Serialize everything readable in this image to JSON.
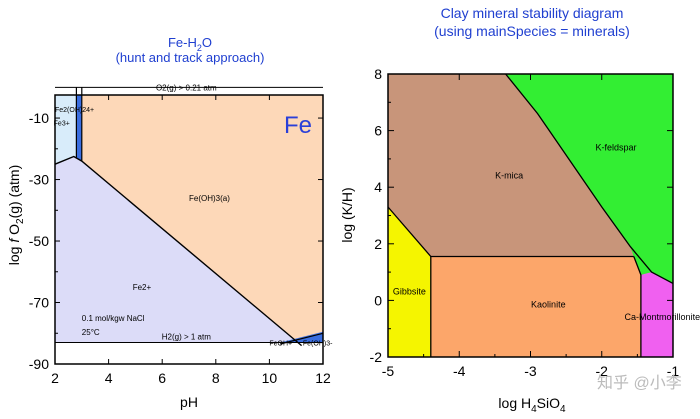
{
  "colors": {
    "title_blue": "#1f3fd0",
    "fe_label_blue": "#2a3fd8",
    "fe2_region": "#dcdcf8",
    "feoh3_region": "#fdd8b8",
    "high_region": "#d8ecfa",
    "dark_blue": "#3a6ee0",
    "kmica": "#c8957a",
    "kfeldspar": "#33ee33",
    "gibbsite": "#f5f500",
    "kaolinite": "#fca66a",
    "camont": "#f060f0",
    "watermark": "#bbbbbb"
  },
  "watermark": "知乎 @小李",
  "chart_data": [
    {
      "type": "area",
      "title_line1": "Fe-H",
      "title_sub": "2",
      "title_line1_end": "O",
      "title_line2": "(hunt and track approach)",
      "element_label": "Fe",
      "xlabel": "pH",
      "ylabel_parts": {
        "a": "log ",
        "b": "f",
        "c": " O",
        "d": "2",
        "e": "(g) (atm)"
      },
      "xlim": [
        2,
        12
      ],
      "ylim": [
        -90,
        -2.5
      ],
      "x_ticks": [
        2,
        4,
        6,
        8,
        10,
        12
      ],
      "x_tick_labels": [
        "2",
        "4",
        "6",
        "8",
        "10",
        "12"
      ],
      "y_ticks": [
        -10,
        -30,
        -50,
        -70,
        -90
      ],
      "y_tick_labels": [
        "-10",
        "-30",
        "-50",
        "-70",
        "-90"
      ],
      "limit_labels": {
        "upper": "O2(g) > 0.21 atm",
        "lower": "H2(g) > 1 atm"
      },
      "conditions": {
        "line1": "0.1 mol/kgw NaCl",
        "line2": "25°C"
      },
      "region_labels": {
        "fe2": {
          "text": "Fe2+",
          "x": 4.9,
          "y": -66
        },
        "feoh3a": {
          "text": "Fe(OH)3(a)",
          "x": 7.0,
          "y": -37
        },
        "feoh2": {
          "text": "Fe2(OH)24+",
          "x": 2.0,
          "y": -8
        },
        "fe3": {
          "text": "Fe3+",
          "x": 1.95,
          "y": -12.5
        },
        "feoh_plus": {
          "text": "FeOH+",
          "x": 10.0,
          "y": -84
        },
        "feoh3_minus": {
          "text": "Fe(OH)3-",
          "x": 11.25,
          "y": -84
        }
      },
      "upper_limit_o2": 0,
      "lower_limit_h2": -83,
      "fe2_feoh3_boundary": [
        [
          2,
          -25
        ],
        [
          2.7,
          -22.5
        ],
        [
          3.0,
          -24
        ],
        [
          11.2,
          -84
        ]
      ],
      "fe3_upper_pH": [
        2.8,
        3.0
      ],
      "feoh_minus_line": [
        [
          10.4,
          -83.5
        ],
        [
          12,
          -80
        ]
      ],
      "bottom_white_y": -83
    },
    {
      "type": "area",
      "title_line1": "Clay mineral stability diagram",
      "title_line2": "(using mainSpecies = minerals)",
      "xlabel_parts": {
        "a": "log H",
        "b": "4",
        "c": "SiO",
        "d": "4"
      },
      "ylabel": "log (K/H)",
      "xlim": [
        -5,
        -1
      ],
      "ylim": [
        -2,
        8
      ],
      "x_ticks": [
        -5,
        -4,
        -3,
        -2,
        -1
      ],
      "x_tick_labels": [
        "-5",
        "-4",
        "-3",
        "-2",
        "-1"
      ],
      "y_ticks": [
        -2,
        0,
        2,
        4,
        6,
        8
      ],
      "y_tick_labels": [
        "-2",
        "0",
        "2",
        "4",
        "6",
        "8"
      ],
      "regions": [
        {
          "name": "K-mica",
          "label_x": -3.3,
          "label_y": 4.3
        },
        {
          "name": "K-feldspar",
          "label_x": -1.8,
          "label_y": 5.3
        },
        {
          "name": "Gibbsite",
          "label_x": -4.7,
          "label_y": 0.2
        },
        {
          "name": "Kaolinite",
          "label_x": -2.75,
          "label_y": -0.25
        },
        {
          "name": "Ca-Montmorillonite",
          "label_x": -1.15,
          "label_y": -0.7
        }
      ],
      "kmica_kfeldspar_boundary": [
        [
          -3.35,
          8
        ],
        [
          -2.9,
          6.6
        ],
        [
          -2.0,
          3.3
        ],
        [
          -1.6,
          1.9
        ],
        [
          -1.3,
          1.0
        ],
        [
          -1.0,
          0.6
        ]
      ],
      "gibbsite_kmica_boundary": [
        [
          -5,
          3.3
        ],
        [
          -4.4,
          1.55
        ]
      ],
      "kaolinite_top": 1.55,
      "gibbsite_kaolinite_x": -4.4,
      "kaolinite_camont_boundary": [
        [
          -1.55,
          1.55
        ],
        [
          -1.45,
          0.9
        ],
        [
          -1.45,
          -2
        ]
      ]
    }
  ]
}
